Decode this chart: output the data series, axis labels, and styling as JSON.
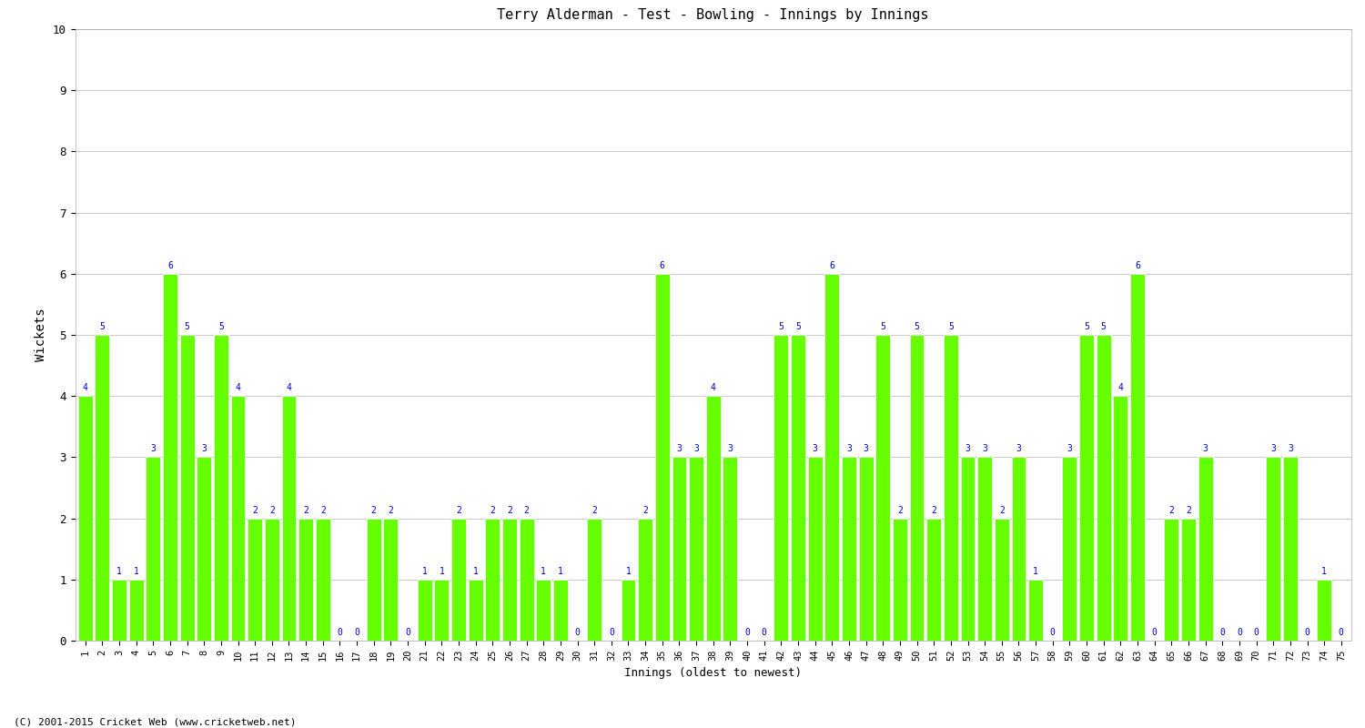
{
  "title": "Terry Alderman - Test - Bowling - Innings by Innings",
  "xlabel": "Innings (oldest to newest)",
  "ylabel": "Wickets",
  "ylim": [
    0,
    10
  ],
  "yticks": [
    0,
    1,
    2,
    3,
    4,
    5,
    6,
    7,
    8,
    9,
    10
  ],
  "bar_color": "#66ff00",
  "bar_edgecolor": "white",
  "label_color": "#0000cc",
  "background_color": "#ffffff",
  "grid_color": "#cccccc",
  "footer": "(C) 2001-2015 Cricket Web (www.cricketweb.net)",
  "innings": [
    1,
    2,
    3,
    4,
    5,
    6,
    7,
    8,
    9,
    10,
    11,
    12,
    13,
    14,
    15,
    16,
    17,
    18,
    19,
    20,
    21,
    22,
    23,
    24,
    25,
    26,
    27,
    28,
    29,
    30,
    31,
    32,
    33,
    34,
    35,
    36,
    37,
    38,
    39,
    40,
    41,
    42,
    43,
    44,
    45,
    46,
    47,
    48,
    49,
    50,
    51,
    52,
    53,
    54,
    55,
    56,
    57,
    58,
    59,
    60,
    61,
    62,
    63,
    64,
    65,
    66,
    67,
    68,
    69,
    70,
    71,
    72,
    73,
    74,
    75
  ],
  "wickets": [
    4,
    5,
    1,
    1,
    3,
    6,
    5,
    3,
    5,
    4,
    2,
    2,
    4,
    2,
    2,
    0,
    0,
    2,
    2,
    0,
    1,
    1,
    2,
    1,
    2,
    2,
    2,
    1,
    1,
    0,
    2,
    0,
    1,
    2,
    6,
    3,
    3,
    4,
    3,
    0,
    0,
    5,
    5,
    3,
    6,
    3,
    3,
    5,
    2,
    5,
    2,
    5,
    3,
    3,
    2,
    3,
    1,
    0,
    3,
    5,
    5,
    4,
    6,
    0,
    2,
    2,
    3,
    0,
    0,
    0,
    3,
    3,
    0,
    1,
    0
  ]
}
